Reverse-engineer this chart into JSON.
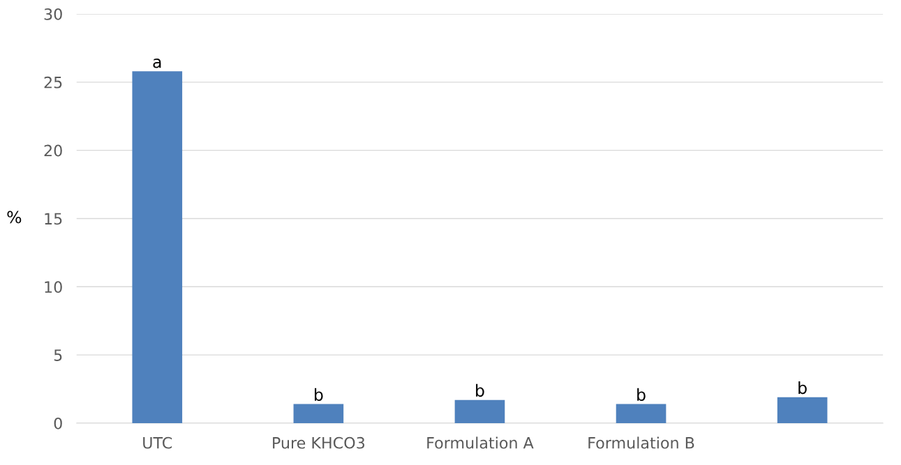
{
  "chart_data": {
    "type": "bar",
    "ylabel": "%",
    "categories": [
      "UTC",
      "Pure KHCO3",
      "Formulation A",
      "Formulation B",
      null
    ],
    "values": [
      25.8,
      1.4,
      1.7,
      1.4,
      1.9
    ],
    "value_labels": [
      "a",
      "b",
      "b",
      "b",
      "b"
    ],
    "color": "#4f81bd",
    "ylim": [
      0,
      30
    ],
    "yticks": [
      0,
      5,
      10,
      15,
      20,
      25,
      30
    ],
    "grid": "y",
    "legend": false
  }
}
